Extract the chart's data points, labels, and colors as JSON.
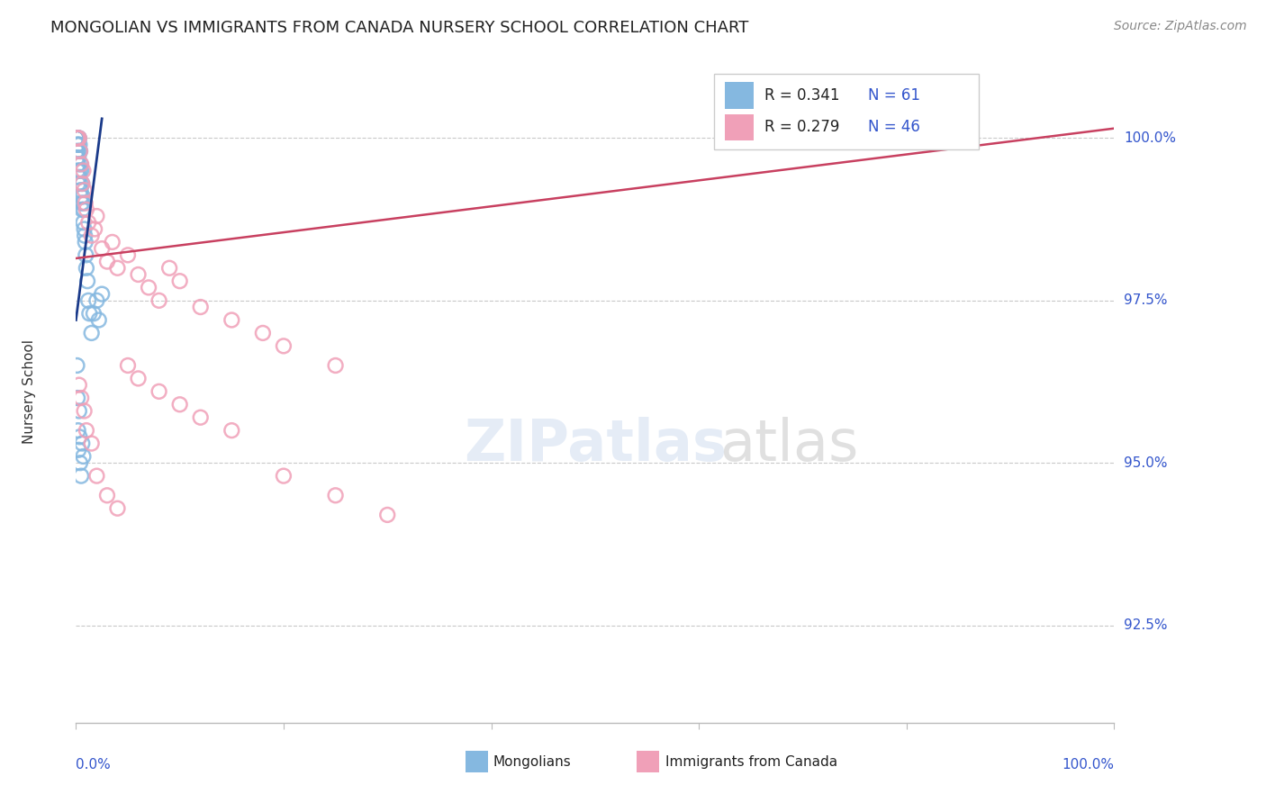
{
  "title": "MONGOLIAN VS IMMIGRANTS FROM CANADA NURSERY SCHOOL CORRELATION CHART",
  "source": "Source: ZipAtlas.com",
  "ylabel": "Nursery School",
  "legend_label1": "Mongolians",
  "legend_label2": "Immigrants from Canada",
  "r1": 0.341,
  "n1": 61,
  "r2": 0.279,
  "n2": 46,
  "color_blue": "#85b8e0",
  "color_pink": "#f0a0b8",
  "color_blue_line": "#1a3a8a",
  "color_pink_line": "#c84060",
  "color_axis_blue": "#3355cc",
  "color_grid": "#bbbbbb",
  "background": "#ffffff",
  "xmin": 0,
  "xmax": 100,
  "ymin": 91.0,
  "ymax": 101.2,
  "yticks": [
    100.0,
    97.5,
    95.0,
    92.5
  ],
  "ytick_labels": [
    "100.0%",
    "97.5%",
    "95.0%",
    "92.5%"
  ],
  "blue_trend_x": [
    0.0,
    2.5
  ],
  "blue_trend_y": [
    97.2,
    100.3
  ],
  "pink_trend_x": [
    0.0,
    100.0
  ],
  "pink_trend_y": [
    98.15,
    100.15
  ],
  "mongo_x": [
    0.05,
    0.05,
    0.05,
    0.05,
    0.05,
    0.1,
    0.1,
    0.1,
    0.1,
    0.1,
    0.15,
    0.15,
    0.15,
    0.15,
    0.2,
    0.2,
    0.2,
    0.2,
    0.25,
    0.25,
    0.3,
    0.3,
    0.3,
    0.35,
    0.35,
    0.4,
    0.4,
    0.45,
    0.45,
    0.5,
    0.5,
    0.55,
    0.6,
    0.6,
    0.65,
    0.7,
    0.7,
    0.75,
    0.8,
    0.85,
    0.9,
    0.95,
    1.0,
    1.1,
    1.2,
    1.3,
    1.5,
    1.7,
    2.0,
    2.2,
    2.5,
    0.1,
    0.15,
    0.2,
    0.25,
    0.3,
    0.35,
    0.4,
    0.5,
    0.6,
    0.7
  ],
  "mongo_y": [
    100.0,
    100.0,
    100.0,
    100.0,
    99.8,
    100.0,
    100.0,
    100.0,
    99.9,
    99.7,
    100.0,
    100.0,
    99.8,
    99.5,
    100.0,
    99.9,
    99.6,
    99.3,
    100.0,
    99.7,
    100.0,
    99.8,
    99.4,
    99.9,
    99.5,
    99.8,
    99.3,
    99.6,
    99.2,
    99.5,
    99.1,
    99.0,
    99.3,
    98.9,
    99.1,
    99.0,
    98.7,
    98.9,
    98.6,
    98.5,
    98.4,
    98.2,
    98.0,
    97.8,
    97.5,
    97.3,
    97.0,
    97.3,
    97.5,
    97.2,
    97.6,
    96.5,
    96.0,
    95.5,
    95.2,
    95.8,
    95.4,
    95.0,
    94.8,
    95.3,
    95.1
  ],
  "canada_x": [
    0.1,
    0.2,
    0.3,
    0.4,
    0.5,
    0.6,
    0.7,
    0.8,
    0.9,
    1.0,
    1.2,
    1.5,
    1.8,
    2.0,
    2.5,
    3.0,
    3.5,
    4.0,
    5.0,
    6.0,
    7.0,
    8.0,
    9.0,
    10.0,
    12.0,
    15.0,
    18.0,
    20.0,
    25.0,
    0.3,
    0.5,
    0.8,
    1.0,
    1.5,
    2.0,
    3.0,
    4.0,
    5.0,
    6.0,
    8.0,
    10.0,
    12.0,
    15.0,
    20.0,
    25.0,
    30.0
  ],
  "canada_y": [
    100.0,
    100.0,
    100.0,
    99.8,
    99.6,
    99.3,
    99.5,
    99.2,
    99.0,
    98.9,
    98.7,
    98.5,
    98.6,
    98.8,
    98.3,
    98.1,
    98.4,
    98.0,
    98.2,
    97.9,
    97.7,
    97.5,
    98.0,
    97.8,
    97.4,
    97.2,
    97.0,
    96.8,
    96.5,
    96.2,
    96.0,
    95.8,
    95.5,
    95.3,
    94.8,
    94.5,
    94.3,
    96.5,
    96.3,
    96.1,
    95.9,
    95.7,
    95.5,
    94.8,
    94.5,
    94.2
  ]
}
